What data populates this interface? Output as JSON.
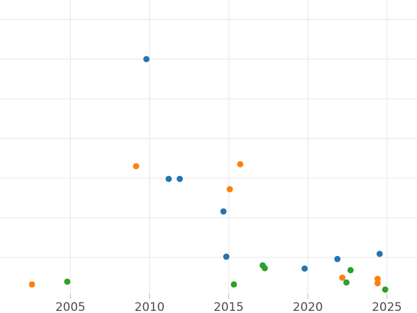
{
  "chart_data": {
    "type": "scatter",
    "title": "",
    "xlabel": "",
    "ylabel": "",
    "grid": true,
    "legend_position": "none",
    "x_range": [
      2000.55,
      2026.9
    ],
    "y_range": [
      -0.4,
      7.49
    ],
    "x_ticks": [
      2005,
      2010,
      2015,
      2020,
      2025
    ],
    "x_tick_labels": [
      "2005",
      "2010",
      "2015",
      "2020",
      "2025"
    ],
    "y_gridline_values": [
      1,
      2,
      3,
      4,
      5,
      6,
      7
    ],
    "marker_diameter_px": 9,
    "tick_label_font_px": 17,
    "colors": {
      "background": "#ffffff",
      "gridline": "#e6e6e6",
      "tick_mark": "#c2c2c2",
      "tick_label": "#4d4d4d",
      "series_blue": "#1f77b4",
      "series_orange": "#ff7f0e",
      "series_green": "#2ca02c"
    },
    "series": [
      {
        "name": "blue",
        "color": "#1f77b4",
        "points": [
          [
            2009.8,
            6.0
          ],
          [
            2011.21,
            2.98
          ],
          [
            2011.91,
            2.98
          ],
          [
            2014.67,
            2.16
          ],
          [
            2014.85,
            1.02
          ],
          [
            2019.8,
            0.72
          ],
          [
            2021.87,
            0.96
          ],
          [
            2024.54,
            1.09
          ]
        ]
      },
      {
        "name": "orange",
        "color": "#ff7f0e",
        "points": [
          [
            2002.57,
            0.32
          ],
          [
            2009.15,
            3.3
          ],
          [
            2015.07,
            2.72
          ],
          [
            2015.73,
            3.35
          ],
          [
            2022.18,
            0.49
          ],
          [
            2024.41,
            0.46
          ],
          [
            2024.41,
            0.35
          ]
        ]
      },
      {
        "name": "green",
        "color": "#2ca02c",
        "points": [
          [
            2004.8,
            0.39
          ],
          [
            2015.33,
            0.32
          ],
          [
            2017.15,
            0.8
          ],
          [
            2017.28,
            0.73
          ],
          [
            2022.44,
            0.37
          ],
          [
            2022.7,
            0.68
          ],
          [
            2024.89,
            0.19
          ]
        ]
      }
    ]
  }
}
